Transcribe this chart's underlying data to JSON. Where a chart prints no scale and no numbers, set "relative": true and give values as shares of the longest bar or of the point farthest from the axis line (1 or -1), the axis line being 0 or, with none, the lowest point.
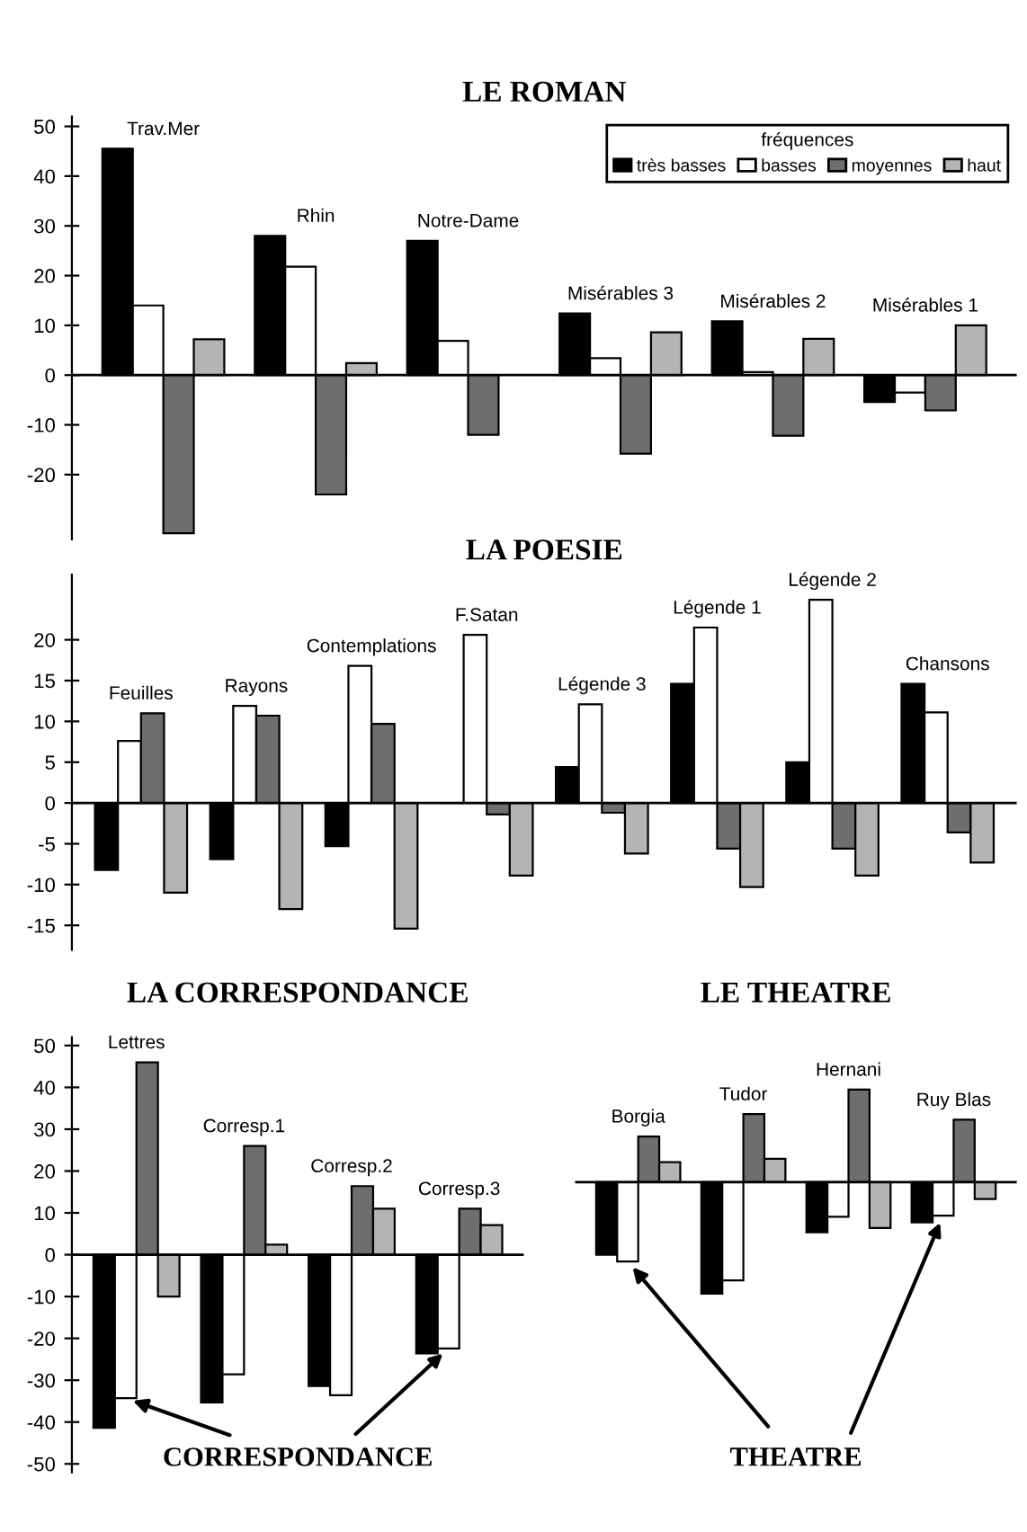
{
  "chart_data": [
    {
      "type": "bar",
      "title": "LE ROMAN",
      "categories": [
        "Trav.Mer",
        "Rhin",
        "Notre-Dame",
        "Misérables 3",
        "Misérables 2",
        "Misérables 1"
      ],
      "ylim": [
        -33,
        52
      ],
      "yticks": [
        -20,
        -10,
        0,
        10,
        20,
        30,
        40,
        50
      ],
      "legend": "top right",
      "legend_title": "fréquences",
      "series": [
        {
          "name": "très basses",
          "color": "#000000",
          "values": [
            45.5,
            28,
            27,
            12.4,
            10.8,
            -5.4
          ]
        },
        {
          "name": "basses",
          "color": "#ffffff",
          "values": [
            14,
            21.8,
            6.9,
            3.4,
            0.6,
            -3.5
          ]
        },
        {
          "name": "moyennes",
          "color": "#6e6e6e",
          "values": [
            -31.8,
            -24,
            -12,
            -15.8,
            -12.2,
            -7.1
          ]
        },
        {
          "name": "haut",
          "color": "#b4b4b4",
          "values": [
            7.2,
            2.4,
            null,
            8.6,
            7.3,
            10
          ]
        }
      ]
    },
    {
      "type": "bar",
      "title": "LA POESIE",
      "categories": [
        "Feuilles",
        "Rayons",
        "Contemplations",
        "F.Satan",
        "Légende 3",
        "Légende 1",
        "Légende 2",
        "Chansons"
      ],
      "ylim": [
        -18,
        28
      ],
      "yticks": [
        -15,
        -10,
        -5,
        0,
        5,
        10,
        15,
        20
      ],
      "series": [
        {
          "color": "#000000",
          "values": [
            -8.2,
            -6.9,
            -5.3,
            0,
            4.4,
            14.6,
            5,
            14.6
          ]
        },
        {
          "color": "#ffffff",
          "values": [
            7.6,
            11.9,
            16.8,
            20.6,
            12.1,
            21.5,
            24.9,
            11.1
          ]
        },
        {
          "color": "#6e6e6e",
          "values": [
            11,
            10.7,
            9.7,
            -1.4,
            -1.2,
            -5.6,
            -5.6,
            -3.6
          ]
        },
        {
          "color": "#b4b4b4",
          "values": [
            -11,
            -13,
            -15.4,
            -8.9,
            -6.2,
            -10.3,
            -8.9,
            -7.3
          ]
        }
      ]
    },
    {
      "type": "bar",
      "title": "LA CORRESPONDANCE",
      "categories": [
        "Lettres",
        "Corresp.1",
        "Corresp.2",
        "Corresp.3"
      ],
      "ylim": [
        -52,
        52
      ],
      "yticks": [
        -50,
        -40,
        -30,
        -20,
        -10,
        0,
        10,
        20,
        30,
        40,
        50
      ],
      "annotations": [
        "CORRESPONDANCE"
      ],
      "series": [
        {
          "color": "#000000",
          "values": [
            -41.4,
            -35.3,
            -31.4,
            -23.6
          ]
        },
        {
          "color": "#ffffff",
          "values": [
            -34.3,
            -28.6,
            -33.6,
            -22.4
          ]
        },
        {
          "color": "#6e6e6e",
          "values": [
            46,
            26,
            16.4,
            11
          ]
        },
        {
          "color": "#b4b4b4",
          "values": [
            -10,
            2.4,
            11,
            7.1
          ]
        }
      ]
    },
    {
      "type": "bar",
      "title": "LE THEATRE",
      "categories": [
        "Borgia",
        "Tudor",
        "Hernani",
        "Ruy Blas"
      ],
      "relative": true,
      "annotations": [
        "THEATRE"
      ],
      "series": [
        {
          "color": "#000000",
          "values": [
            -0.65,
            -1,
            -0.45,
            -0.36
          ]
        },
        {
          "color": "#ffffff",
          "values": [
            -0.71,
            -0.88,
            -0.31,
            -0.3
          ]
        },
        {
          "color": "#6e6e6e",
          "values": [
            0.41,
            0.61,
            0.83,
            0.56
          ]
        },
        {
          "color": "#b4b4b4",
          "values": [
            0.18,
            0.21,
            -0.41,
            -0.15
          ]
        }
      ]
    }
  ]
}
